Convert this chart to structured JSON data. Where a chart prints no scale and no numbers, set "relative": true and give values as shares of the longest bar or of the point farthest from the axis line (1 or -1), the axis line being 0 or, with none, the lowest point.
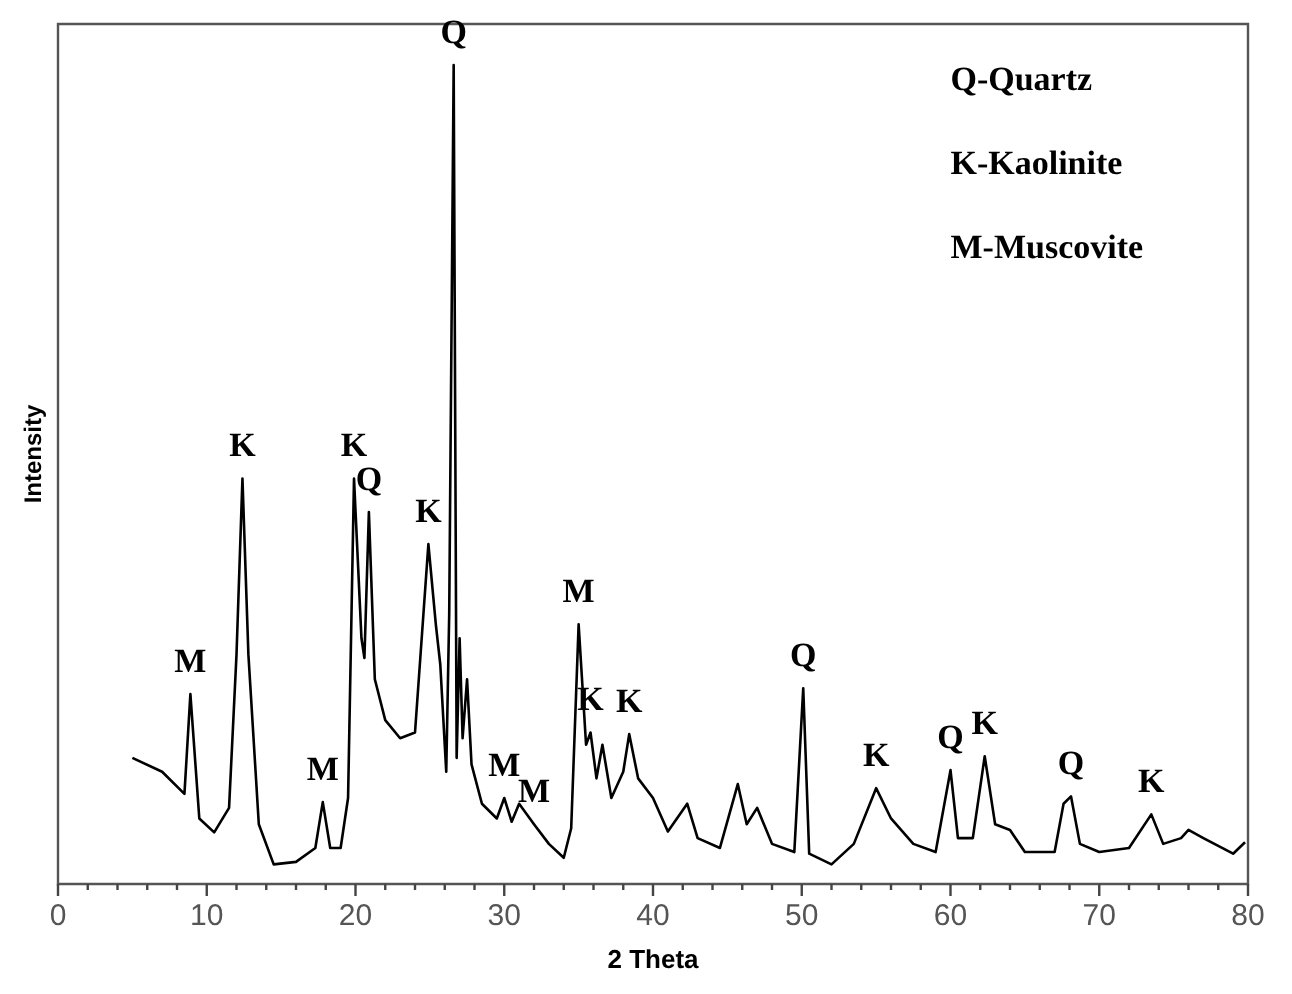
{
  "chart_data": {
    "type": "line",
    "relative": true,
    "xlabel": "2 Theta",
    "ylabel": "Intensity",
    "color": "#000000",
    "marker": "none",
    "grid": false,
    "legend": false,
    "xlim": [
      0,
      80
    ],
    "xticks": [
      0,
      {
        "value": 2,
        "label": null
      },
      {
        "value": 4,
        "label": null
      },
      {
        "value": 6,
        "label": null
      },
      {
        "value": 8,
        "label": null
      },
      10,
      {
        "value": 12,
        "label": null
      },
      {
        "value": 14,
        "label": null
      },
      {
        "value": 16,
        "label": null
      },
      {
        "value": 18,
        "label": null
      },
      20,
      {
        "value": 22,
        "label": null
      },
      {
        "value": 24,
        "label": null
      },
      {
        "value": 26,
        "label": null
      },
      {
        "value": 28,
        "label": null
      },
      30,
      {
        "value": 32,
        "label": null
      },
      {
        "value": 34,
        "label": null
      },
      {
        "value": 36,
        "label": null
      },
      {
        "value": 38,
        "label": null
      },
      40,
      {
        "value": 42,
        "label": null
      },
      {
        "value": 44,
        "label": null
      },
      {
        "value": 46,
        "label": null
      },
      {
        "value": 48,
        "label": null
      },
      50,
      {
        "value": 52,
        "label": null
      },
      {
        "value": 54,
        "label": null
      },
      {
        "value": 56,
        "label": null
      },
      {
        "value": 58,
        "label": null
      },
      60,
      {
        "value": 62,
        "label": null
      },
      {
        "value": 64,
        "label": null
      },
      {
        "value": 66,
        "label": null
      },
      {
        "value": 68,
        "label": null
      },
      70,
      {
        "value": 72,
        "label": null
      },
      {
        "value": 74,
        "label": null
      },
      {
        "value": 76,
        "label": null
      },
      {
        "value": 78,
        "label": null
      },
      80
    ],
    "x": [
      5,
      7,
      8.5,
      8.9,
      9.5,
      10.5,
      11.5,
      12,
      12.4,
      12.8,
      13.5,
      14.5,
      16,
      17.3,
      17.8,
      18.3,
      19,
      19.5,
      19.9,
      20.4,
      20.6,
      20.9,
      21.3,
      22,
      23,
      24,
      24.9,
      25.4,
      25.7,
      26.1,
      26.3,
      26.6,
      26.8,
      27,
      27.2,
      27.5,
      27.8,
      28.5,
      29.5,
      30,
      30.5,
      31,
      32,
      33,
      34,
      34.5,
      35,
      35.5,
      35.8,
      36.2,
      36.6,
      37.2,
      38,
      38.4,
      39,
      40,
      41,
      42.3,
      43,
      44.5,
      45.7,
      46.3,
      47,
      48,
      49.5,
      50.1,
      50.5,
      52,
      53.5,
      55,
      56,
      57.5,
      59,
      60,
      60.5,
      61.5,
      62.3,
      63,
      64,
      65,
      67,
      67.6,
      68.1,
      68.7,
      70,
      72,
      73.5,
      74.3,
      75.5,
      76,
      77,
      79,
      79.8
    ],
    "values": [
      0.154,
      0.137,
      0.11,
      0.232,
      0.08,
      0.063,
      0.093,
      0.28,
      0.495,
      0.28,
      0.073,
      0.024,
      0.027,
      0.044,
      0.1,
      0.044,
      0.044,
      0.105,
      0.495,
      0.3,
      0.276,
      0.454,
      0.25,
      0.2,
      0.178,
      0.185,
      0.415,
      0.317,
      0.268,
      0.137,
      0.33,
      1,
      0.154,
      0.3,
      0.178,
      0.25,
      0.146,
      0.098,
      0.08,
      0.105,
      0.076,
      0.098,
      0.073,
      0.049,
      0.032,
      0.068,
      0.317,
      0.17,
      0.185,
      0.129,
      0.17,
      0.105,
      0.137,
      0.183,
      0.129,
      0.105,
      0.064,
      0.098,
      0.056,
      0.044,
      0.122,
      0.073,
      0.093,
      0.049,
      0.039,
      0.239,
      0.037,
      0.024,
      0.049,
      0.117,
      0.08,
      0.049,
      0.039,
      0.139,
      0.056,
      0.056,
      0.156,
      0.073,
      0.066,
      0.039,
      0.039,
      0.098,
      0.107,
      0.049,
      0.039,
      0.044,
      0.085,
      0.049,
      0.056,
      0.066,
      0.056,
      0.037,
      0.051
    ],
    "annotations": [
      {
        "text": "M",
        "x": 8.9,
        "y": 0.232
      },
      {
        "text": "K",
        "x": 12.4,
        "y": 0.495
      },
      {
        "text": "M",
        "x": 17.8,
        "y": 0.1
      },
      {
        "text": "K",
        "x": 19.9,
        "y": 0.495
      },
      {
        "text": "Q",
        "x": 20.9,
        "y": 0.454
      },
      {
        "text": "K",
        "x": 24.9,
        "y": 0.415
      },
      {
        "text": "Q",
        "x": 26.6,
        "y": 1
      },
      {
        "text": "M",
        "x": 30,
        "y": 0.105
      },
      {
        "text": "M",
        "x": 32,
        "y": 0.073
      },
      {
        "text": "M",
        "x": 35,
        "y": 0.317
      },
      {
        "text": "K",
        "x": 35.8,
        "y": 0.185
      },
      {
        "text": "K",
        "x": 38.4,
        "y": 0.183
      },
      {
        "text": "Q",
        "x": 50.1,
        "y": 0.239
      },
      {
        "text": "K",
        "x": 55,
        "y": 0.117
      },
      {
        "text": "Q",
        "x": 60,
        "y": 0.139
      },
      {
        "text": "K",
        "x": 62.3,
        "y": 0.156
      },
      {
        "text": "Q",
        "x": 68.1,
        "y": 0.107
      },
      {
        "text": "K",
        "x": 73.5,
        "y": 0.085
      },
      "Q-Quartz",
      "K-Kaolinite",
      "M-Muscovite"
    ]
  }
}
